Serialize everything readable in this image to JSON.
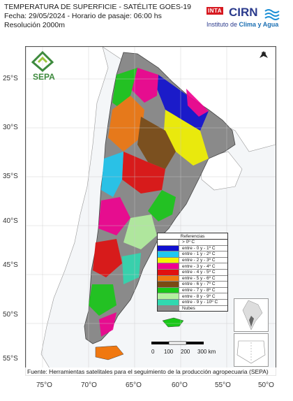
{
  "header": {
    "title": "TEMPERATURA DE SUPERFICIE - SATÉLITE GOES-19",
    "date_line": "Fecha: 29/05/2024 - Horario de pasaje: 06:00 hs",
    "resolution": "Resolución 2000m"
  },
  "logos": {
    "inta": "INTA",
    "cirn": "CIRN",
    "cirn_sub_prefix": "Instituto de ",
    "cirn_sub_bold": "Clima y Agua",
    "sepa": "SEPA"
  },
  "north_arrow": {
    "letter": "N"
  },
  "lat_labels": [
    "25°S",
    "30°S",
    "35°S",
    "40°S",
    "45°S",
    "50°S",
    "55°S"
  ],
  "lon_labels": [
    "75°O",
    "70°O",
    "65°O",
    "60°O",
    "55°O",
    "50°O"
  ],
  "legend": {
    "title": "Referencias",
    "items": [
      {
        "label": "> 0º C",
        "color": "#ffffff"
      },
      {
        "label": "entre - 0 y - 1º C",
        "color": "#1010d0"
      },
      {
        "label": "entre - 1 y - 2º C",
        "color": "#20c8f0"
      },
      {
        "label": "entre - 2 y - 3º C",
        "color": "#f4f400"
      },
      {
        "label": "entre - 3 y - 4º C",
        "color": "#f00090"
      },
      {
        "label": "entre - 4 y - 5º C",
        "color": "#e01010"
      },
      {
        "label": "entre - 5 y - 6º C",
        "color": "#f07810"
      },
      {
        "label": "entre - 6 y - 7º C",
        "color": "#7a4a14"
      },
      {
        "label": "entre - 7 y - 8º C",
        "color": "#18c818"
      },
      {
        "label": "entre - 8 y - 9º C",
        "color": "#b4f0a0"
      },
      {
        "label": "entre - 9 y - 10º C",
        "color": "#30d8b0"
      },
      {
        "label": "Nubes",
        "color": "#8a8a8a"
      }
    ]
  },
  "scale": {
    "labels": [
      "0",
      "100",
      "200",
      "300 km"
    ]
  },
  "footer": "Fuente: Herramientas satelitales para el seguimiento de la producción agropecuaria (SEPA)",
  "colors": {
    "neighbor_land": "#ffffff",
    "ocean": "#f4f6f8",
    "cloud": "#8a8a8a"
  }
}
